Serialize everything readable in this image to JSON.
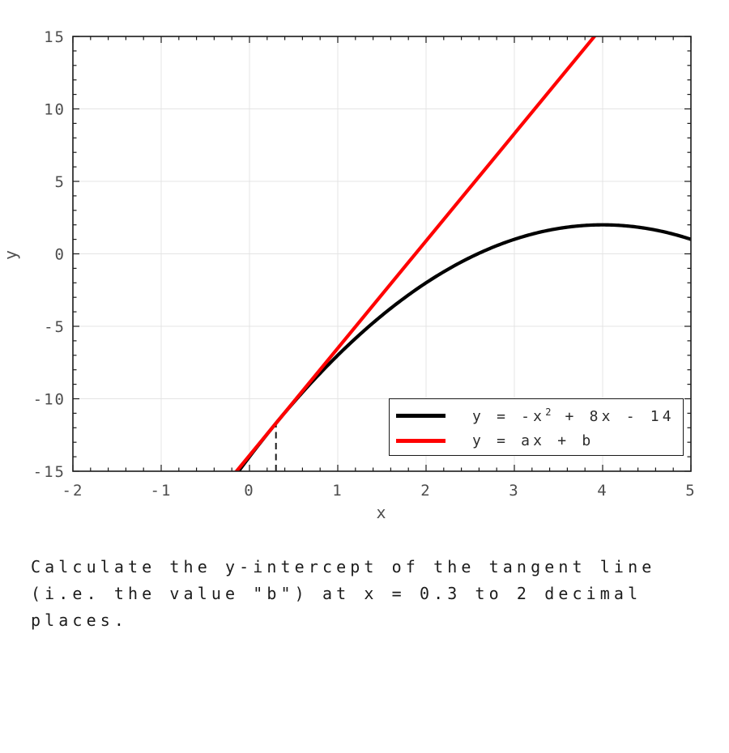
{
  "chart_data": {
    "type": "line",
    "title": "",
    "xlabel": "x",
    "ylabel": "y",
    "xlim": [
      -2,
      5
    ],
    "ylim": [
      -15,
      15
    ],
    "x_ticks": [
      -2,
      -1,
      0,
      1,
      2,
      3,
      4,
      5
    ],
    "y_ticks": [
      -15,
      -10,
      -5,
      0,
      5,
      10,
      15
    ],
    "x_minor_step": 0.2,
    "y_minor_step": 1,
    "grid": true,
    "legend_position": "lower right",
    "series": [
      {
        "name": "parabola",
        "label": "y = -x² + 8x - 14",
        "type": "quadratic",
        "coefficients": [
          -1,
          8,
          -14
        ],
        "color": "#000000",
        "x_range": [
          -2,
          5
        ]
      },
      {
        "name": "tangent-line",
        "label": "y = ax + b",
        "type": "linear",
        "slope": 7.4,
        "intercept": -13.91,
        "color": "#ff0000",
        "x_range": [
          -2,
          5
        ]
      }
    ],
    "annotations": {
      "dashed_vline": {
        "x": 0.3,
        "y_from": -15,
        "y_to": -11.69
      }
    }
  },
  "legend": {
    "entries": [
      {
        "swatch_color": "#000000",
        "label_parts": {
          "pre": "y = -x",
          "sup": "2",
          "post": " + 8x - 14"
        }
      },
      {
        "swatch_color": "#ff0000",
        "label": "y = ax + b"
      }
    ]
  },
  "question": {
    "lines": [
      "Calculate the y-intercept of the tangent line",
      "(i.e. the value \"b\") at x = 0.3 to 2 decimal",
      "places."
    ]
  },
  "colors": {
    "grid": "#e4e4e4",
    "axis_frame": "#1a1a1a",
    "tick": "#1a1a1a",
    "tick_label": "#4d4d4d",
    "dashed_marker": "#1a1a1a",
    "question_text": "#1c1c1c"
  }
}
